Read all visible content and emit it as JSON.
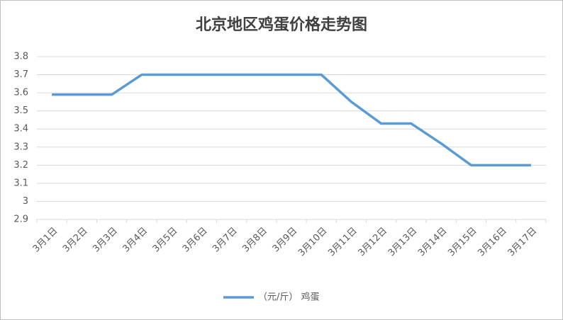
{
  "chart_data": {
    "type": "line",
    "title": "北京地区鸡蛋价格走势图",
    "categories": [
      "3月1日",
      "3月2日",
      "3月3日",
      "3月4日",
      "3月5日",
      "3月6日",
      "3月7日",
      "3月8日",
      "3月9日",
      "3月10日",
      "3月11日",
      "3月12日",
      "3月13日",
      "3月14日",
      "3月15日",
      "3月16日",
      "3月17日"
    ],
    "series": [
      {
        "name": "（元/斤） 鸡蛋",
        "color": "#5b9bd5",
        "values": [
          3.59,
          3.59,
          3.59,
          3.7,
          3.7,
          3.7,
          3.7,
          3.7,
          3.7,
          3.7,
          3.55,
          3.43,
          3.43,
          3.32,
          3.2,
          3.2,
          3.2
        ]
      }
    ],
    "ylim": [
      2.9,
      3.8
    ],
    "yticks": [
      2.9,
      3,
      3.1,
      3.2,
      3.3,
      3.4,
      3.5,
      3.6,
      3.7,
      3.8
    ],
    "grid": true,
    "legend": "bottom"
  }
}
